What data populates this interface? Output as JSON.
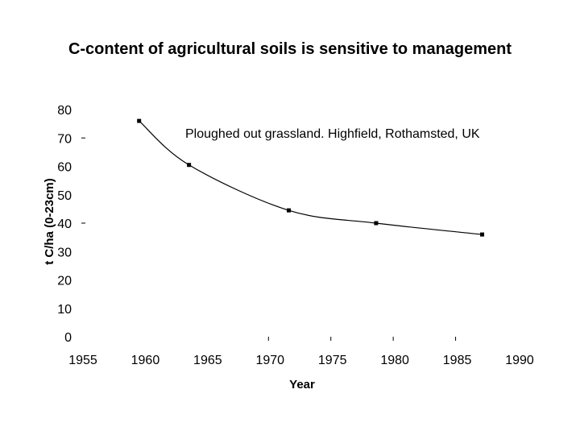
{
  "chart_data": {
    "type": "line",
    "title": "C-content of agricultural soils is sensitive to management",
    "xlabel": "Year",
    "ylabel": "t C/ha (0-23cm)",
    "xlim": [
      1955,
      1990
    ],
    "ylim": [
      0,
      80
    ],
    "x_ticks": [
      "1955",
      "1960",
      "1965",
      "1970",
      "1975",
      "1980",
      "1985",
      "1990"
    ],
    "y_ticks": [
      "0",
      "10",
      "20",
      "30",
      "40",
      "50",
      "60",
      "70",
      "80"
    ],
    "annotation": "Ploughed out grassland. Highfield, Rothamsted, UK",
    "grid": false,
    "legend": "none",
    "series": [
      {
        "points": [
          {
            "x": 1959.5,
            "y": 76
          },
          {
            "x": 1963.5,
            "y": 60.5
          },
          {
            "x": 1971.5,
            "y": 44.5
          },
          {
            "x": 1978.5,
            "y": 40
          },
          {
            "x": 1987,
            "y": 36
          }
        ],
        "color": "#000000"
      }
    ]
  }
}
